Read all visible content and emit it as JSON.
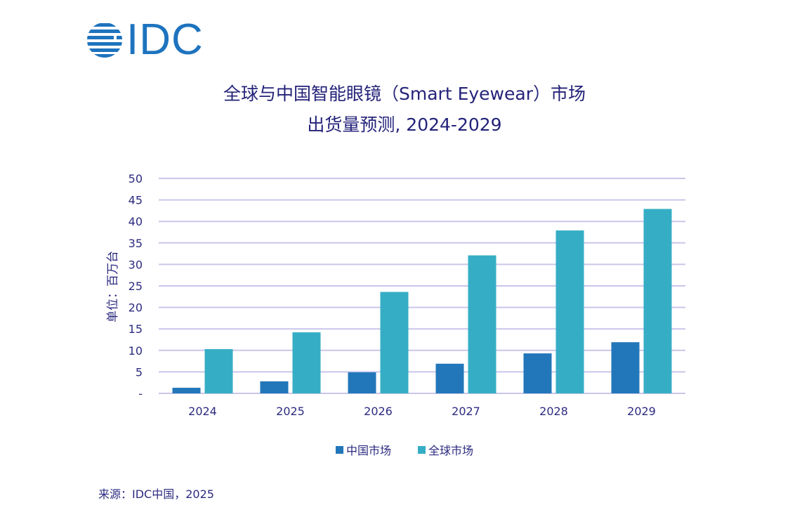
{
  "logo": {
    "text": "IDC",
    "icon": "idc-globe-icon",
    "color": "#1e73be"
  },
  "title_line1": "全球与中国智能眼镜（Smart Eyewear）市场",
  "title_line2": "出货量预测, 2024-2029",
  "source": "来源：IDC中国，2025",
  "colors": {
    "china": "#2277ba",
    "global": "#35aec5",
    "grid": "#c9c6ea",
    "text": "#2c2b80"
  },
  "chart_data": {
    "type": "bar",
    "title": "全球与中国智能眼镜（Smart Eyewear）市场出货量预测, 2024-2029",
    "xlabel": "",
    "ylabel": "单位：百万台",
    "categories": [
      "2024",
      "2025",
      "2026",
      "2027",
      "2028",
      "2029"
    ],
    "series": [
      {
        "name": "中国市场",
        "values": [
          1.3,
          2.8,
          4.9,
          6.9,
          9.3,
          11.9
        ]
      },
      {
        "name": "全球市场",
        "values": [
          10.3,
          14.2,
          23.6,
          32.1,
          37.9,
          42.9
        ]
      }
    ],
    "ylim": [
      0,
      50
    ],
    "yticks": [
      0,
      5,
      10,
      15,
      20,
      25,
      30,
      35,
      40,
      45,
      50
    ],
    "ytick_labels": [
      "-",
      "5",
      "10",
      "15",
      "20",
      "25",
      "30",
      "35",
      "40",
      "45",
      "50"
    ],
    "grid": true,
    "legend": "bottom-center"
  }
}
